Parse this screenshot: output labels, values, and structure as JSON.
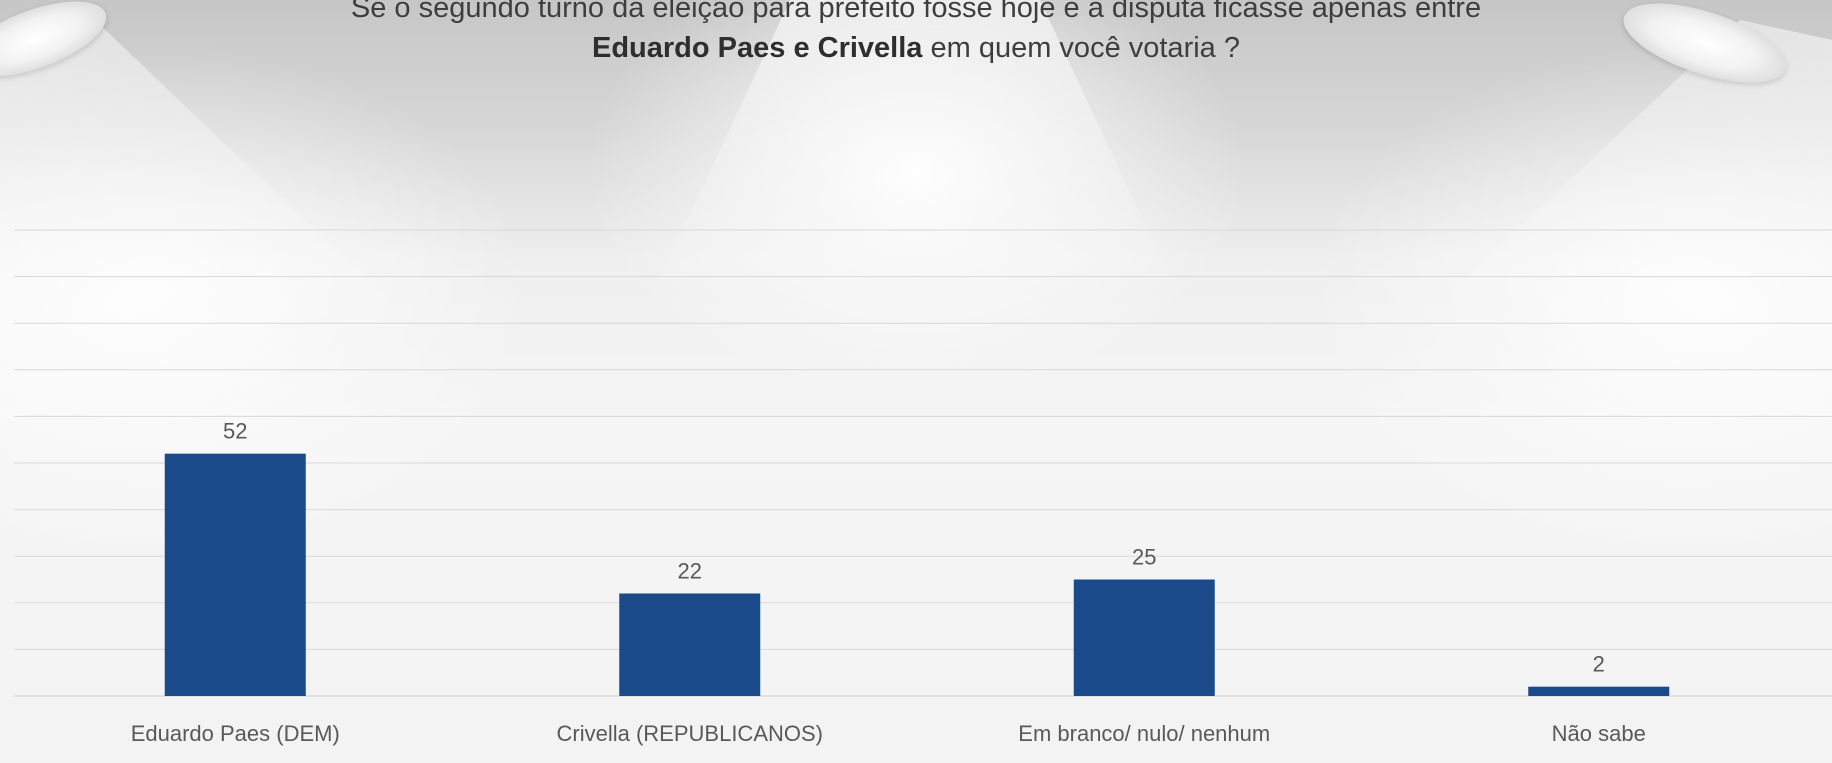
{
  "title": {
    "line1": "Se o segundo turno da eleição para prefeito fosse hoje e a disputa ficasse apenas entre",
    "line2_bold": "Eduardo Paes e Crivella",
    "line2_rest": " em quem você votaria ?"
  },
  "colors": {
    "bar": "#1a4a8a",
    "gridline": "#d9d9d9",
    "label": "#595959"
  },
  "chart_data": {
    "type": "bar",
    "categories": [
      "Eduardo Paes (DEM)",
      "Crivella (REPUBLICANOS)",
      "Em branco/ nulo/ nenhum",
      "Não sabe"
    ],
    "values": [
      52,
      22,
      25,
      2
    ],
    "title": "Se o segundo turno da eleição para prefeito fosse hoje e a disputa ficasse apenas entre Eduardo Paes e Crivella em quem você votaria ?",
    "xlabel": "",
    "ylabel": "",
    "ylim": [
      0,
      100
    ],
    "gridline_step": 10,
    "grid": true,
    "legend": "none",
    "data_labels": true
  }
}
